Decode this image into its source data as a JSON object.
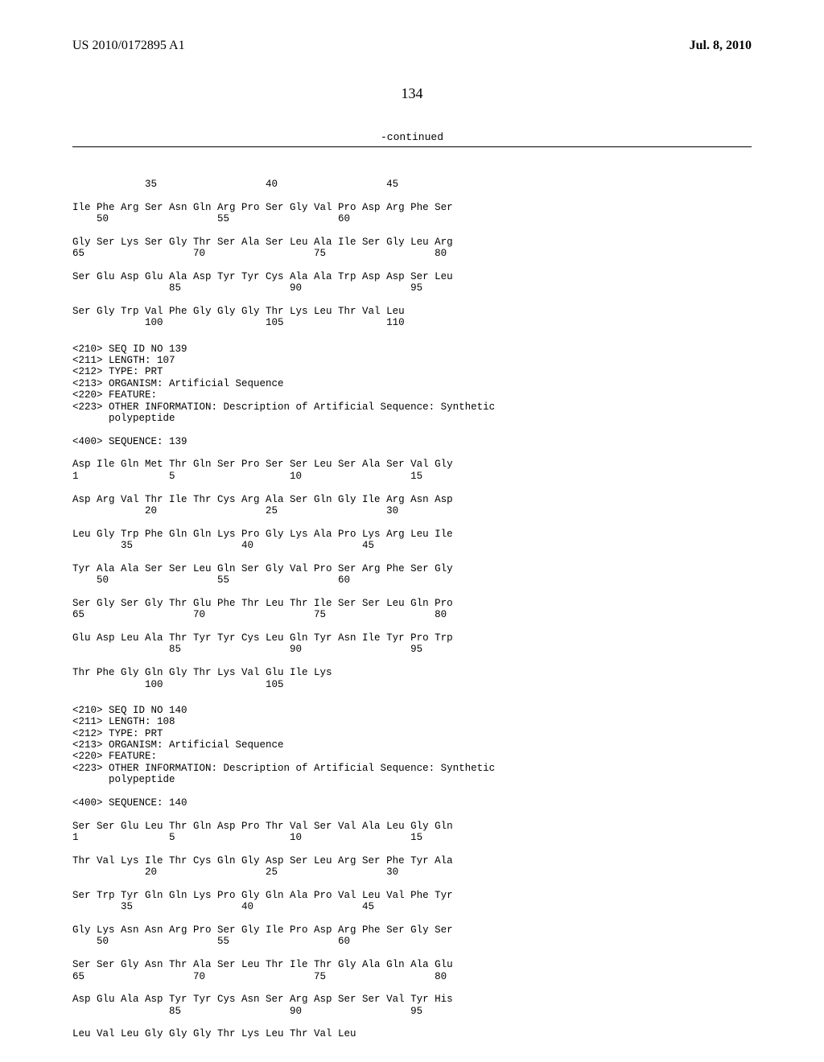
{
  "header": {
    "pub_number": "US 2010/0172895 A1",
    "pub_date": "Jul. 8, 2010"
  },
  "page_number": "134",
  "continued_label": "-continued",
  "seq_blocks": [
    {
      "lines": [
        "            35                  40                  45",
        "",
        "Ile Phe Arg Ser Asn Gln Arg Pro Ser Gly Val Pro Asp Arg Phe Ser",
        "    50                  55                  60",
        "",
        "Gly Ser Lys Ser Gly Thr Ser Ala Ser Leu Ala Ile Ser Gly Leu Arg",
        "65                  70                  75                  80",
        "",
        "Ser Glu Asp Glu Ala Asp Tyr Tyr Cys Ala Ala Trp Asp Asp Ser Leu",
        "                85                  90                  95",
        "",
        "Ser Gly Trp Val Phe Gly Gly Gly Thr Lys Leu Thr Val Leu",
        "            100                 105                 110"
      ]
    },
    {
      "lines": [
        "<210> SEQ ID NO 139",
        "<211> LENGTH: 107",
        "<212> TYPE: PRT",
        "<213> ORGANISM: Artificial Sequence",
        "<220> FEATURE:",
        "<223> OTHER INFORMATION: Description of Artificial Sequence: Synthetic",
        "      polypeptide",
        "",
        "<400> SEQUENCE: 139",
        "",
        "Asp Ile Gln Met Thr Gln Ser Pro Ser Ser Leu Ser Ala Ser Val Gly",
        "1               5                   10                  15",
        "",
        "Asp Arg Val Thr Ile Thr Cys Arg Ala Ser Gln Gly Ile Arg Asn Asp",
        "            20                  25                  30",
        "",
        "Leu Gly Trp Phe Gln Gln Lys Pro Gly Lys Ala Pro Lys Arg Leu Ile",
        "        35                  40                  45",
        "",
        "Tyr Ala Ala Ser Ser Leu Gln Ser Gly Val Pro Ser Arg Phe Ser Gly",
        "    50                  55                  60",
        "",
        "Ser Gly Ser Gly Thr Glu Phe Thr Leu Thr Ile Ser Ser Leu Gln Pro",
        "65                  70                  75                  80",
        "",
        "Glu Asp Leu Ala Thr Tyr Tyr Cys Leu Gln Tyr Asn Ile Tyr Pro Trp",
        "                85                  90                  95",
        "",
        "Thr Phe Gly Gln Gly Thr Lys Val Glu Ile Lys",
        "            100                 105"
      ]
    },
    {
      "lines": [
        "<210> SEQ ID NO 140",
        "<211> LENGTH: 108",
        "<212> TYPE: PRT",
        "<213> ORGANISM: Artificial Sequence",
        "<220> FEATURE:",
        "<223> OTHER INFORMATION: Description of Artificial Sequence: Synthetic",
        "      polypeptide",
        "",
        "<400> SEQUENCE: 140",
        "",
        "Ser Ser Glu Leu Thr Gln Asp Pro Thr Val Ser Val Ala Leu Gly Gln",
        "1               5                   10                  15",
        "",
        "Thr Val Lys Ile Thr Cys Gln Gly Asp Ser Leu Arg Ser Phe Tyr Ala",
        "            20                  25                  30",
        "",
        "Ser Trp Tyr Gln Gln Lys Pro Gly Gln Ala Pro Val Leu Val Phe Tyr",
        "        35                  40                  45",
        "",
        "Gly Lys Asn Asn Arg Pro Ser Gly Ile Pro Asp Arg Phe Ser Gly Ser",
        "    50                  55                  60",
        "",
        "Ser Ser Gly Asn Thr Ala Ser Leu Thr Ile Thr Gly Ala Gln Ala Glu",
        "65                  70                  75                  80",
        "",
        "Asp Glu Ala Asp Tyr Tyr Cys Asn Ser Arg Asp Ser Ser Val Tyr His",
        "                85                  90                  95",
        "",
        "Leu Val Leu Gly Gly Gly Thr Lys Leu Thr Val Leu"
      ]
    }
  ]
}
